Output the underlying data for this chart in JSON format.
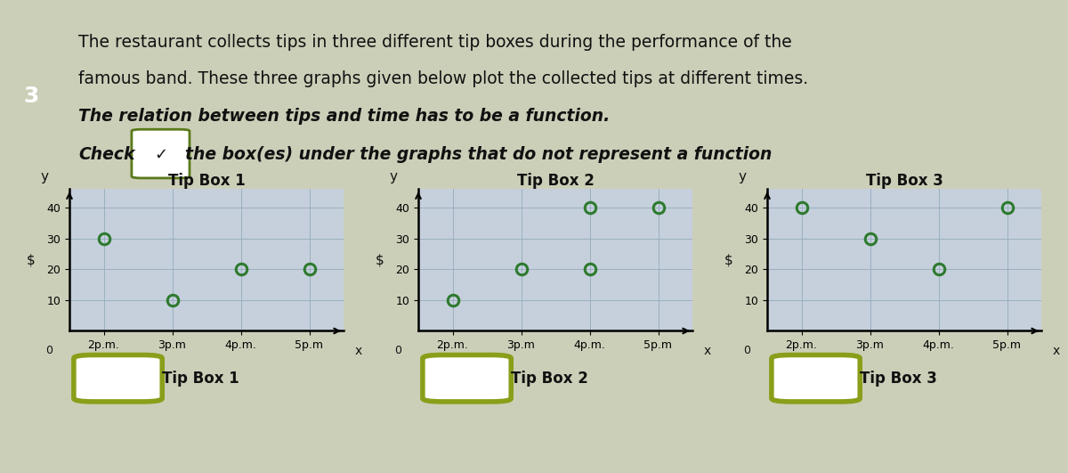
{
  "question_number": "3",
  "text_lines": [
    "The restaurant collects tips in three different tip boxes during the performance of the",
    "famous band. These three graphs given below plot the collected tips at different times.",
    "The relation between tips and time has to be a function.",
    "Check",
    "the box(es) under the graphs that do not represent a function"
  ],
  "graphs": [
    {
      "title": "Tip Box 1",
      "points": [
        [
          2,
          30
        ],
        [
          3,
          10
        ],
        [
          4,
          20
        ],
        [
          5,
          20
        ]
      ],
      "yticks": [
        10,
        20,
        30,
        40
      ],
      "xtick_labels": [
        "2p.m.",
        "3p.m",
        "4p.m.",
        "5p.m"
      ]
    },
    {
      "title": "Tip Box 2",
      "points": [
        [
          2,
          10
        ],
        [
          3,
          20
        ],
        [
          4,
          40
        ],
        [
          4,
          20
        ],
        [
          5,
          40
        ]
      ],
      "yticks": [
        10,
        20,
        30,
        40
      ],
      "xtick_labels": [
        "2p.m.",
        "3p.m",
        "4p.m.",
        "5p.m"
      ]
    },
    {
      "title": "Tip Box 3",
      "points": [
        [
          2,
          40
        ],
        [
          3,
          30
        ],
        [
          4,
          20
        ],
        [
          5,
          40
        ]
      ],
      "yticks": [
        10,
        20,
        30,
        40
      ],
      "xtick_labels": [
        "2p.m.",
        "3p.m",
        "4p.m.",
        "5p.m"
      ]
    }
  ],
  "checkbox_labels": [
    "Tip Box 1",
    "Tip Box 2",
    "Tip Box 3"
  ],
  "bg_color": "#cccfb8",
  "graph_bg": "#c5d0dc",
  "grid_color": "#9aafc0",
  "point_color": "#2e7a2e",
  "title_box_bg": "#e8e8e8",
  "title_box_border": "#aaaaaa",
  "qnum_bg": "#1a1a1a",
  "checkbox_border": "#8a9e1a",
  "text_color": "#111111",
  "line3_italic": true,
  "font_size_text": 13.5,
  "font_size_graph_title": 12,
  "font_size_tick": 9,
  "marker_size": 9
}
